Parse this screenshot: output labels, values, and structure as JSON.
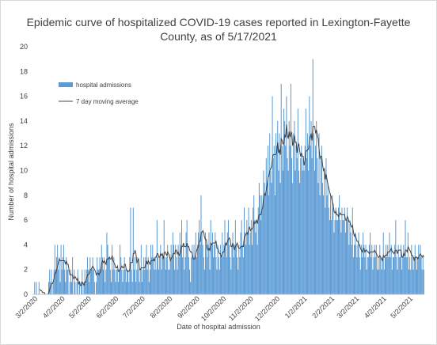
{
  "chart_data": {
    "type": "bar",
    "title_lines": [
      "Epidemic curve of hospitalized COVID-19 cases reported in Lexington-Fayette",
      "County, as of 5/17/2021"
    ],
    "xlabel": "Date of hospital admission",
    "ylabel": "Number of hospital admissions",
    "ylim": [
      0,
      20
    ],
    "yticks": [
      0,
      2,
      4,
      6,
      8,
      10,
      12,
      14,
      16,
      18,
      20
    ],
    "x_range": [
      "2020-02-28",
      "2021-05-17"
    ],
    "x_tick_labels": [
      "3/2/2020",
      "4/2/2020",
      "5/2/2020",
      "6/2/2020",
      "7/2/2020",
      "8/2/2020",
      "9/2/2020",
      "10/2/2020",
      "11/2/2020",
      "12/2/2020",
      "1/2/2021",
      "2/2/2021",
      "3/2/2021",
      "4/2/2021",
      "5/2/2021"
    ],
    "grid": false,
    "legend_position": "upper-left",
    "series": [
      {
        "name": "hospital admissions",
        "kind": "bar",
        "color": "#5b9bd5"
      },
      {
        "name": "7 day moving average",
        "kind": "line",
        "color": "#404040"
      }
    ],
    "daily_counts_by_month": [
      {
        "month": "2020-03",
        "values": [
          1,
          0,
          1,
          0,
          0,
          1,
          0,
          0,
          0,
          0,
          0,
          0,
          0,
          0,
          0,
          0,
          1,
          2,
          1,
          2,
          0,
          1,
          2,
          4,
          2,
          3,
          4,
          2,
          3,
          1,
          4
        ]
      },
      {
        "month": "2020-04",
        "values": [
          2,
          3,
          4,
          2,
          1,
          3,
          2,
          2,
          0,
          1,
          2,
          1,
          3,
          0,
          2,
          1,
          0,
          1,
          2,
          0,
          1,
          0,
          1,
          2,
          0,
          1,
          2,
          1,
          2,
          3
        ]
      },
      {
        "month": "2020-05",
        "values": [
          2,
          1,
          3,
          2,
          2,
          3,
          2,
          1,
          0,
          1,
          3,
          2,
          2,
          3,
          2,
          4,
          3,
          2,
          3,
          1,
          2,
          5,
          4,
          3,
          3,
          2,
          1,
          4,
          2,
          3,
          2
        ]
      },
      {
        "month": "2020-06",
        "values": [
          1,
          2,
          2,
          1,
          2,
          4,
          3,
          2,
          1,
          2,
          3,
          2,
          1,
          2,
          2,
          1,
          3,
          7,
          2,
          1,
          7,
          2,
          3,
          1,
          2,
          3,
          2,
          1,
          2,
          4
        ]
      },
      {
        "month": "2020-07",
        "values": [
          1,
          2,
          3,
          2,
          3,
          4,
          2,
          3,
          1,
          2,
          4,
          3,
          4,
          3,
          2,
          3,
          2,
          6,
          3,
          2,
          3,
          4,
          2,
          3,
          3,
          6,
          3,
          2,
          3,
          4,
          2
        ]
      },
      {
        "month": "2020-08",
        "values": [
          2,
          3,
          4,
          3,
          5,
          4,
          2,
          4,
          3,
          2,
          4,
          3,
          5,
          4,
          6,
          3,
          4,
          2,
          3,
          5,
          6,
          4,
          3,
          2,
          1,
          3,
          4,
          3,
          4,
          3,
          5
        ]
      },
      {
        "month": "2020-09",
        "values": [
          3,
          4,
          5,
          6,
          4,
          8,
          5,
          4,
          3,
          2,
          5,
          4,
          3,
          4,
          5,
          2,
          6,
          4,
          5,
          3,
          4,
          5,
          3,
          2,
          4,
          3,
          2,
          4,
          3,
          5
        ]
      },
      {
        "month": "2020-10",
        "values": [
          3,
          4,
          6,
          4,
          3,
          5,
          6,
          4,
          3,
          2,
          4,
          5,
          3,
          4,
          6,
          4,
          3,
          2,
          4,
          3,
          5,
          6,
          4,
          3,
          7,
          5,
          4,
          6,
          5,
          7,
          4
        ]
      },
      {
        "month": "2020-11",
        "values": [
          5,
          6,
          4,
          7,
          8,
          6,
          5,
          6,
          4,
          7,
          9,
          8,
          6,
          8,
          7,
          10,
          9,
          8,
          11,
          9,
          12,
          8,
          13,
          10,
          9,
          16,
          11,
          12,
          8,
          13
        ]
      },
      {
        "month": "2020-12",
        "values": [
          12,
          14,
          10,
          13,
          9,
          17,
          12,
          10,
          15,
          14,
          12,
          16,
          11,
          10,
          14,
          12,
          17,
          11,
          9,
          13,
          14,
          10,
          12,
          11,
          15,
          10,
          9,
          11,
          12,
          10,
          11
        ]
      },
      {
        "month": "2021-01",
        "values": [
          10,
          12,
          15,
          11,
          13,
          10,
          16,
          12,
          14,
          11,
          19,
          13,
          10,
          12,
          14,
          11,
          9,
          13,
          8,
          11,
          12,
          9,
          8,
          10,
          7,
          11,
          8,
          9,
          7,
          6,
          8
        ]
      },
      {
        "month": "2021-02",
        "values": [
          6,
          8,
          7,
          5,
          6,
          7,
          6,
          6,
          7,
          8,
          6,
          5,
          7,
          6,
          6,
          7,
          5,
          6,
          7,
          6,
          4,
          6,
          5,
          4,
          7,
          3,
          4,
          5
        ]
      },
      {
        "month": "2021-03",
        "values": [
          4,
          3,
          4,
          5,
          3,
          2,
          4,
          3,
          5,
          4,
          3,
          4,
          2,
          3,
          3,
          4,
          5,
          3,
          4,
          2,
          3,
          4,
          3,
          4,
          2,
          3,
          2,
          4,
          3,
          2,
          3
        ]
      },
      {
        "month": "2021-04",
        "values": [
          5,
          2,
          3,
          4,
          3,
          4,
          3,
          5,
          3,
          4,
          2,
          3,
          3,
          4,
          6,
          3,
          2,
          4,
          3,
          3,
          4,
          2,
          3,
          4,
          3,
          6,
          3,
          3,
          5,
          2
        ]
      },
      {
        "month": "2021-05",
        "values": [
          3,
          2,
          4,
          3,
          2,
          3,
          4,
          3,
          2,
          3,
          4,
          3,
          4,
          3,
          2,
          3,
          2
        ]
      }
    ]
  }
}
